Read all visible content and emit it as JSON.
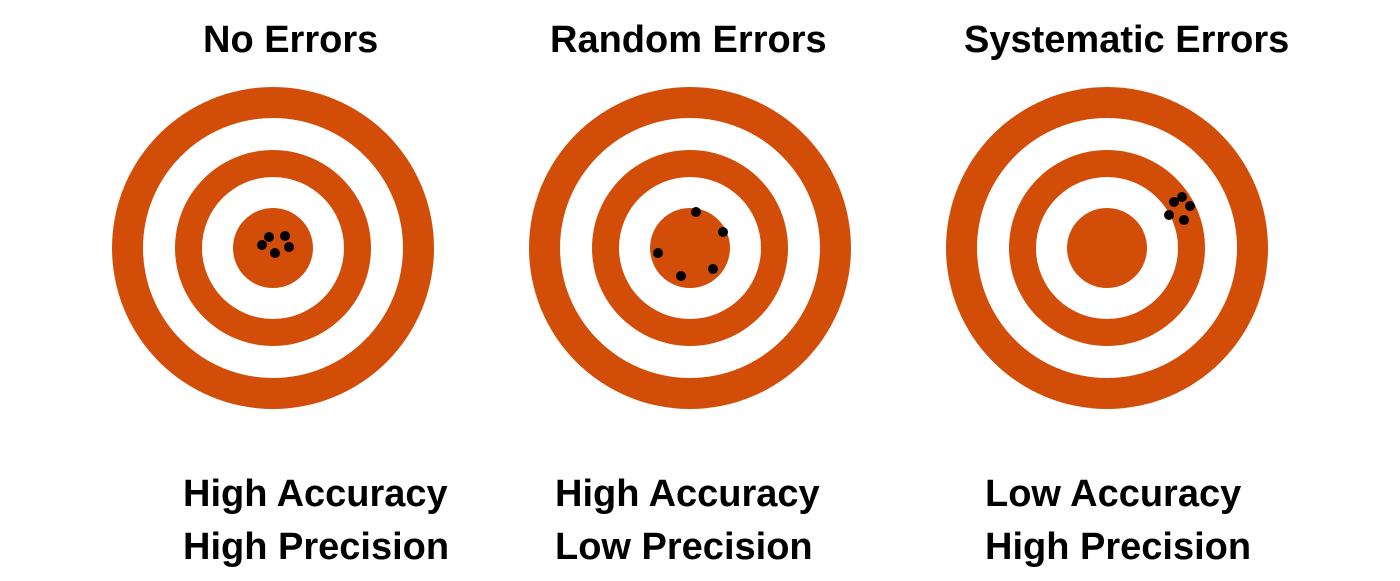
{
  "colors": {
    "ring": "#d24e08",
    "gap": "#ffffff",
    "shot": "#000000"
  },
  "panels": [
    {
      "title": "No Errors",
      "caption": [
        "High Accuracy",
        "High Precision"
      ],
      "center_filled": true,
      "shot_count": 5
    },
    {
      "title": "Random Errors",
      "caption": [
        "High Accuracy",
        "Low Precision"
      ],
      "center_filled": true,
      "shot_count": 5
    },
    {
      "title": "Systematic Errors",
      "caption": [
        "Low Accuracy",
        "High Precision"
      ],
      "center_filled": true,
      "shot_count": 5
    }
  ]
}
